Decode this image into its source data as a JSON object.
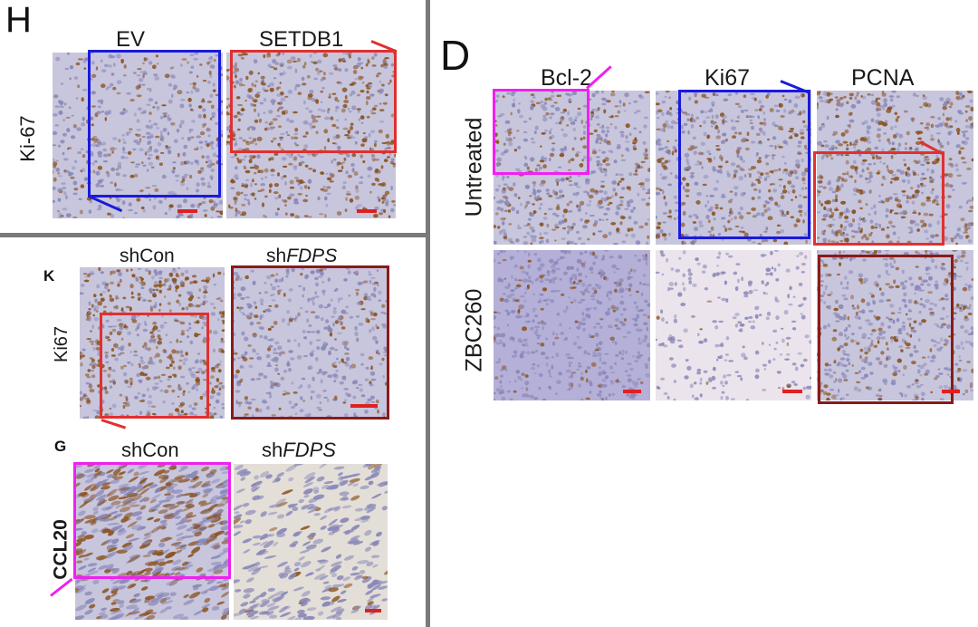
{
  "panel_h": {
    "letter": "H",
    "columns": [
      "EV",
      "SETDB1"
    ],
    "row_label": "Ki-67"
  },
  "panel_d": {
    "letter": "D",
    "columns": [
      "Bcl-2",
      "Ki67",
      "PCNA"
    ],
    "rows": [
      "Untreated",
      "ZBC260"
    ]
  },
  "panel_k": {
    "letter": "K",
    "col1": "shCon",
    "col2_prefix": "sh",
    "col2_gene": "FDPS",
    "row_label": "Ki67"
  },
  "panel_g": {
    "letter": "G",
    "col1": "shCon",
    "col2_prefix": "sh",
    "col2_gene": "FDPS",
    "row_label": "CCL20"
  },
  "colors": {
    "blue_box": "#1a1adc",
    "red_box": "#e03030",
    "magenta_box": "#f020f0",
    "darkred_box": "#8a1a1a",
    "scale_bar": "#e02020",
    "divider": "#7a7a7a",
    "tissue_bg": "#c8c6dc",
    "nucleus_brown": "#8a5220",
    "nucleus_blue": "#8a88b8"
  }
}
